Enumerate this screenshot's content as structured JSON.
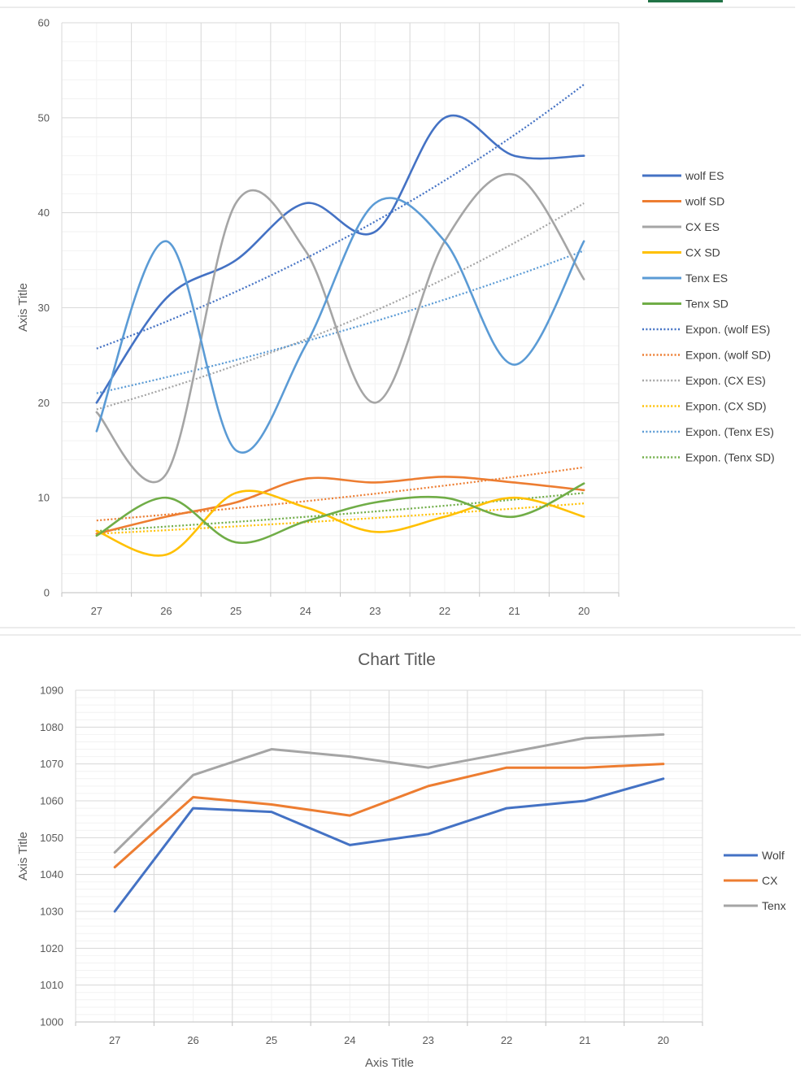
{
  "chart_data": [
    {
      "type": "line",
      "title": "",
      "xlabel": "",
      "ylabel": "Axis Title",
      "ylim": [
        0,
        60
      ],
      "yticks": [
        0,
        10,
        20,
        30,
        40,
        50,
        60
      ],
      "smooth": true,
      "grid": true,
      "legend_position": "right",
      "categories": [
        "27",
        "26",
        "25",
        "24",
        "23",
        "22",
        "21",
        "20"
      ],
      "series": [
        {
          "name": "wolf ES",
          "color": "#4472C4",
          "values": [
            20,
            31,
            35,
            41,
            38,
            50,
            46,
            46
          ]
        },
        {
          "name": "wolf SD",
          "color": "#ED7D31",
          "values": [
            6.2,
            8.0,
            9.5,
            12.0,
            11.6,
            12.2,
            11.6,
            10.8
          ]
        },
        {
          "name": "CX ES",
          "color": "#A5A5A5",
          "values": [
            19,
            12.5,
            41,
            36,
            20,
            37,
            44,
            33
          ]
        },
        {
          "name": "CX SD",
          "color": "#FFC000",
          "values": [
            6.5,
            4.0,
            10.5,
            9.0,
            6.4,
            8.0,
            10.0,
            8.0
          ]
        },
        {
          "name": "Tenx ES",
          "color": "#5B9BD5",
          "values": [
            17,
            37,
            15,
            26,
            41,
            37,
            24,
            37
          ]
        },
        {
          "name": "Tenx SD",
          "color": "#70AD47",
          "values": [
            6.0,
            10.0,
            5.3,
            7.5,
            9.5,
            10.0,
            8.0,
            11.5
          ]
        }
      ],
      "trendlines": [
        {
          "name": "Expon. (wolf ES)",
          "color": "#4472C4",
          "type": "exponential",
          "start": 25.7,
          "end": 53.5
        },
        {
          "name": "Expon. (wolf SD)",
          "color": "#ED7D31",
          "type": "exponential",
          "start": 7.6,
          "end": 13.2
        },
        {
          "name": "Expon. (CX ES)",
          "color": "#A5A5A5",
          "type": "exponential",
          "start": 19.3,
          "end": 41.0
        },
        {
          "name": "Expon. (CX SD)",
          "color": "#FFC000",
          "type": "exponential",
          "start": 6.2,
          "end": 9.4
        },
        {
          "name": "Expon. (Tenx ES)",
          "color": "#5B9BD5",
          "type": "exponential",
          "start": 21.0,
          "end": 36.0
        },
        {
          "name": "Expon. (Tenx SD)",
          "color": "#70AD47",
          "type": "exponential",
          "start": 6.5,
          "end": 10.5
        }
      ]
    },
    {
      "type": "line",
      "title": "Chart Title",
      "xlabel": "Axis Title",
      "ylabel": "Axis Title",
      "ylim": [
        1000,
        1090
      ],
      "yticks": [
        1000,
        1010,
        1020,
        1030,
        1040,
        1050,
        1060,
        1070,
        1080,
        1090
      ],
      "smooth": false,
      "grid": true,
      "legend_position": "right",
      "categories": [
        "27",
        "26",
        "25",
        "24",
        "23",
        "22",
        "21",
        "20"
      ],
      "series": [
        {
          "name": "Wolf",
          "color": "#4472C4",
          "values": [
            1030,
            1058,
            1057,
            1048,
            1051,
            1058,
            1060,
            1066
          ]
        },
        {
          "name": "CX",
          "color": "#ED7D31",
          "values": [
            1042,
            1061,
            1059,
            1056,
            1064,
            1069,
            1069,
            1070
          ]
        },
        {
          "name": "Tenx",
          "color": "#A5A5A5",
          "values": [
            1046,
            1067,
            1074,
            1072,
            1069,
            1073,
            1077,
            1078
          ]
        }
      ]
    }
  ],
  "ui": {
    "accent_tab_color": "#217346"
  }
}
